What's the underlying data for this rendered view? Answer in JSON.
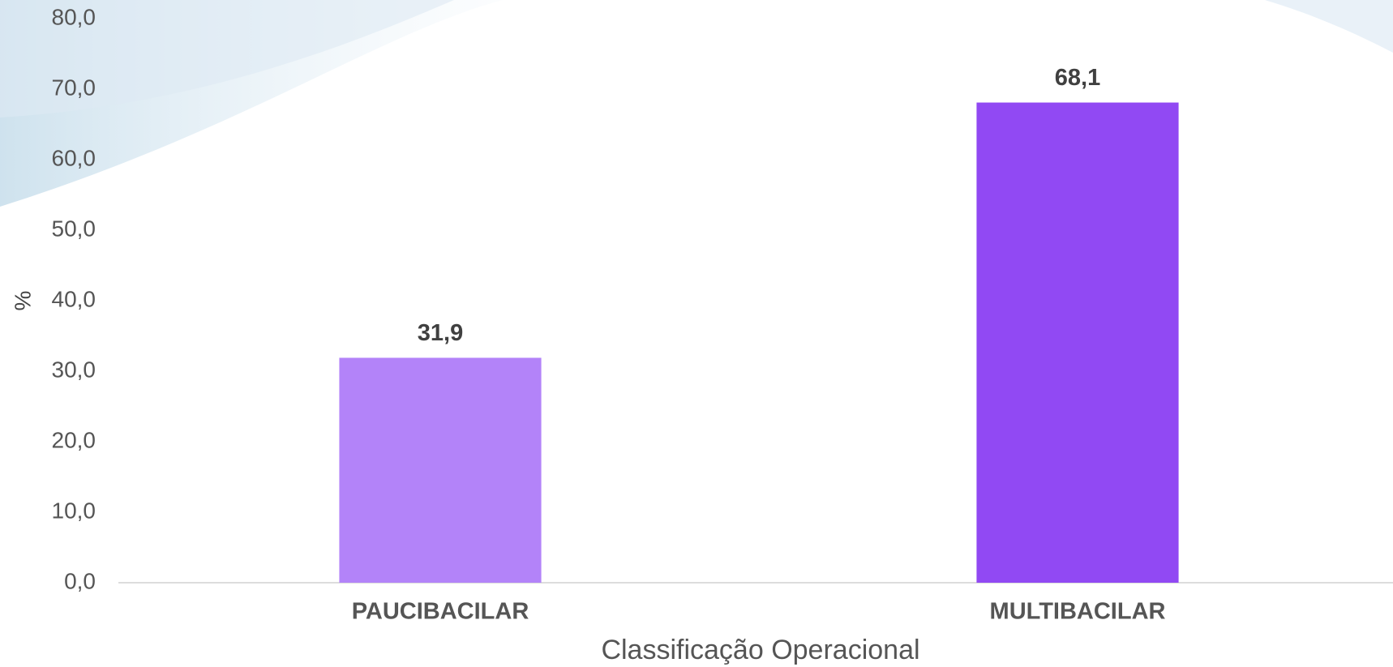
{
  "chart_data": {
    "type": "bar",
    "categories": [
      "PAUCIBACILAR",
      "MULTIBACILAR"
    ],
    "values": [
      31.9,
      68.1
    ],
    "value_labels": [
      "31,9",
      "68,1"
    ],
    "colors": [
      "#b383f9",
      "#9149f3"
    ],
    "ylabel": "%",
    "xlabel": "Classificação Operacional",
    "ylim": [
      0,
      80
    ],
    "yticks": [
      {
        "value": 0,
        "label": "0,0"
      },
      {
        "value": 10,
        "label": "10,0"
      },
      {
        "value": 20,
        "label": "20,0"
      },
      {
        "value": 30,
        "label": "30,0"
      },
      {
        "value": 40,
        "label": "40,0"
      },
      {
        "value": 50,
        "label": "50,0"
      },
      {
        "value": 60,
        "label": "60,0"
      },
      {
        "value": 70,
        "label": "70,0"
      },
      {
        "value": 80,
        "label": "80,0"
      }
    ],
    "grid": false
  }
}
